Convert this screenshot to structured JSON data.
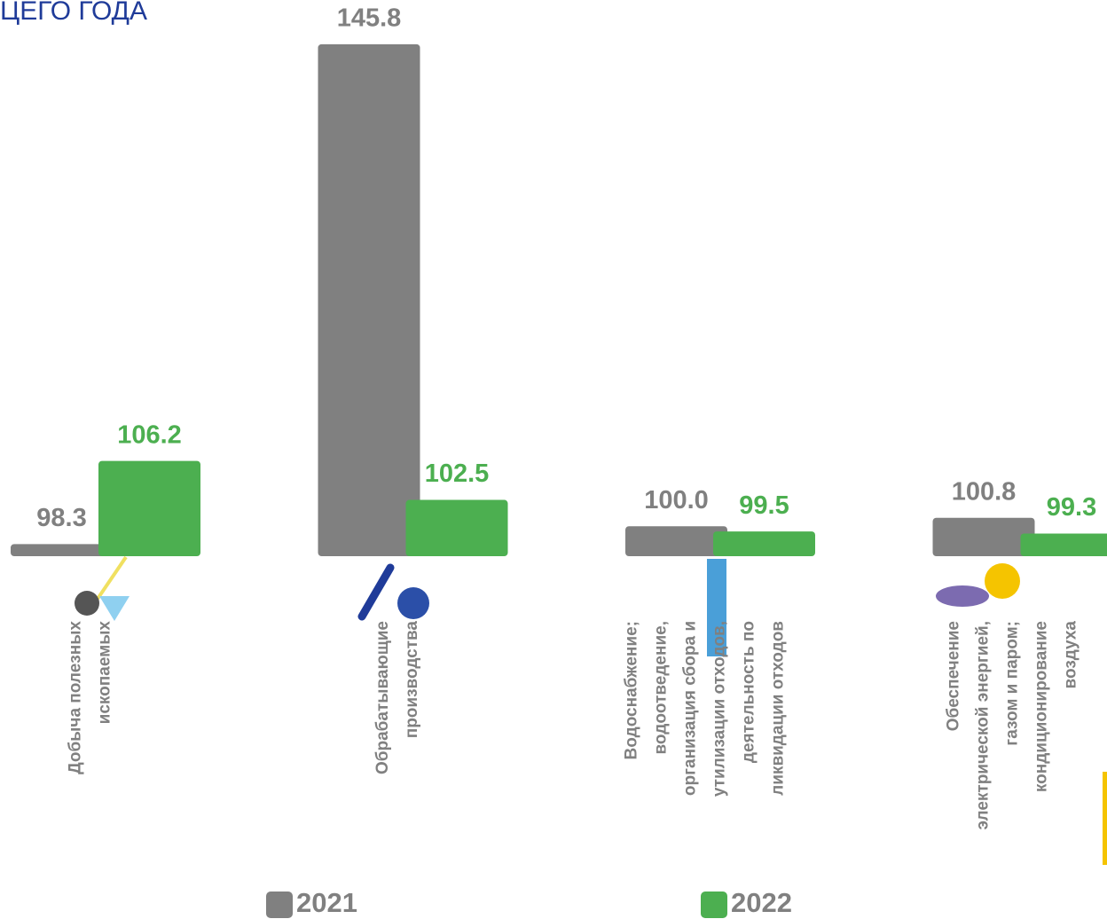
{
  "chart_data": {
    "type": "bar",
    "title": "ЦЕГО ГОДА",
    "categories": [
      "Добыча полезных\nископаемых",
      "Обрабатывающие\nпроизводства",
      "Водоснабжение;\nводоотведение,\nорганизация сбора и\nутилизации отходов,\nдеятельность по\nликвидации  отходов",
      "Обеспечение\nэлектрической энергией,\nгазом и паром;\nкондиционирование\nвоздуха"
    ],
    "series": [
      {
        "name": "2021",
        "color": "#808080",
        "values": [
          98.3,
          145.8,
          100.0,
          100.8
        ],
        "value_labels": [
          "98.3",
          "145.8",
          "100.0",
          "100.8"
        ]
      },
      {
        "name": "2022",
        "color": "#4caf50",
        "values": [
          106.2,
          102.5,
          99.5,
          99.3
        ]
      }
    ],
    "ylim": [
      97.15,
      150
    ]
  }
}
